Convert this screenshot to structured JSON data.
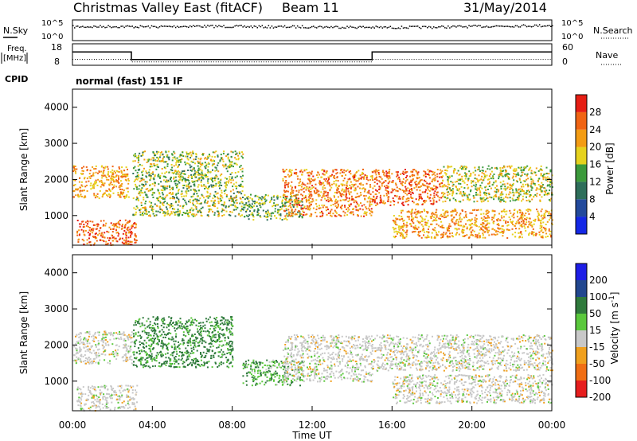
{
  "header": {
    "station": "Christmas Valley East (fitACF)",
    "beam": "Beam 11",
    "date": "31/May/2014"
  },
  "top_panels": {
    "nsky_label": "N.Sky",
    "nsky_ticks": [
      "10^5",
      "10^0"
    ],
    "nsearch_label": "N.Search",
    "nsearch_ticks": [
      "10^5",
      "10^0"
    ],
    "freq_label_1": "Freq.",
    "freq_label_2": "[MHz]",
    "freq_ticks": [
      "18",
      "8"
    ],
    "nave_label": "Nave",
    "nave_ticks": [
      "60",
      "0"
    ],
    "cpid_label": "CPID",
    "cpid_value": "normal (fast) 151 IF"
  },
  "x_axis": {
    "ticks": [
      "00:00",
      "04:00",
      "08:00",
      "12:00",
      "16:00",
      "20:00",
      "00:00"
    ],
    "label": "Time UT"
  },
  "colors": {
    "power": [
      "#1428e6",
      "#234a9c",
      "#2e6e5a",
      "#3c9a3c",
      "#e6d21e",
      "#f39c14",
      "#f06414",
      "#e61e14"
    ],
    "velocity": [
      "#1e1ee6",
      "#22478f",
      "#2f7a3c",
      "#5ac83c",
      "#c8c8c8",
      "#f0a01e",
      "#f06e14",
      "#e61e1e"
    ]
  },
  "chart_data": [
    {
      "type": "line",
      "panel": "N.Sky / N.Search",
      "xlim_hours": [
        0,
        24
      ],
      "series": [
        {
          "name": "N.Sky",
          "x": [
            0,
            2,
            4,
            6,
            8,
            10,
            12,
            14,
            16,
            18,
            20,
            22,
            24
          ],
          "values_log10": [
            4.0,
            4.1,
            4.0,
            4.2,
            4.1,
            4.0,
            4.0,
            3.9,
            3.8,
            3.9,
            4.1,
            4.3,
            4.4
          ]
        }
      ]
    },
    {
      "type": "line",
      "panel": "Freq. / Nave",
      "xlim_hours": [
        0,
        24
      ],
      "series": [
        {
          "name": "Freq.",
          "x": [
            0,
            2.95,
            2.95,
            15.0,
            15.0,
            24
          ],
          "values": [
            14.6,
            14.6,
            10.6,
            10.6,
            14.6,
            14.6
          ]
        },
        {
          "name": "Nave",
          "x": [
            0,
            2.95,
            2.95,
            15.0,
            15.0,
            24
          ],
          "values": [
            16,
            16,
            8,
            8,
            16,
            16
          ]
        }
      ]
    },
    {
      "type": "heatmap",
      "panel": "Power",
      "xlabel": "Time UT",
      "ylabel": "Slant Range [km]",
      "colorbar_label": "Power [dB]",
      "xlim_hours": [
        0,
        24
      ],
      "ylim_km": [
        180,
        4500
      ],
      "yticks": [
        1000,
        2000,
        3000,
        4000
      ],
      "colorbar_ticks": [
        4,
        8,
        12,
        16,
        20,
        24,
        28
      ],
      "colorbar_range": [
        0,
        32
      ],
      "echo_regions": [
        {
          "t0": 0.0,
          "t1": 2.8,
          "r0": 1500,
          "r1": 2400,
          "value": 22
        },
        {
          "t0": 0.2,
          "t1": 3.2,
          "r0": 200,
          "r1": 900,
          "value": 26
        },
        {
          "t0": 3.0,
          "t1": 8.5,
          "r0": 1000,
          "r1": 2800,
          "value": 16
        },
        {
          "t0": 8.5,
          "t1": 11.5,
          "r0": 900,
          "r1": 1600,
          "value": 14
        },
        {
          "t0": 10.5,
          "t1": 15.0,
          "r0": 1000,
          "r1": 2300,
          "value": 24
        },
        {
          "t0": 15.0,
          "t1": 18.5,
          "r0": 1300,
          "r1": 2300,
          "value": 26
        },
        {
          "t0": 16.0,
          "t1": 24.0,
          "r0": 400,
          "r1": 1200,
          "value": 22
        },
        {
          "t0": 18.5,
          "t1": 24.0,
          "r0": 1400,
          "r1": 2400,
          "value": 18
        }
      ]
    },
    {
      "type": "heatmap",
      "panel": "Velocity",
      "xlabel": "Time UT",
      "ylabel": "Slant Range [km]",
      "colorbar_label": "Velocity [m s^-1]",
      "xlim_hours": [
        0,
        24
      ],
      "ylim_km": [
        180,
        4500
      ],
      "yticks": [
        1000,
        2000,
        3000,
        4000
      ],
      "colorbar_ticks": [
        200,
        100,
        50,
        15,
        -15,
        -50,
        -100,
        -200
      ],
      "echo_regions": [
        {
          "t0": 0.0,
          "t1": 3.0,
          "r0": 1500,
          "r1": 2400,
          "value": 0
        },
        {
          "t0": 0.2,
          "t1": 3.2,
          "r0": 200,
          "r1": 900,
          "value": 0
        },
        {
          "t0": 3.0,
          "t1": 8.0,
          "r0": 1400,
          "r1": 2800,
          "value": 40
        },
        {
          "t0": 8.5,
          "t1": 11.5,
          "r0": 900,
          "r1": 1600,
          "value": 30
        },
        {
          "t0": 10.5,
          "t1": 15.0,
          "r0": 1000,
          "r1": 2300,
          "value": 0
        },
        {
          "t0": 15.0,
          "t1": 24.0,
          "r0": 1300,
          "r1": 2300,
          "value": 0
        },
        {
          "t0": 16.0,
          "t1": 24.0,
          "r0": 400,
          "r1": 1200,
          "value": 0
        }
      ]
    }
  ]
}
